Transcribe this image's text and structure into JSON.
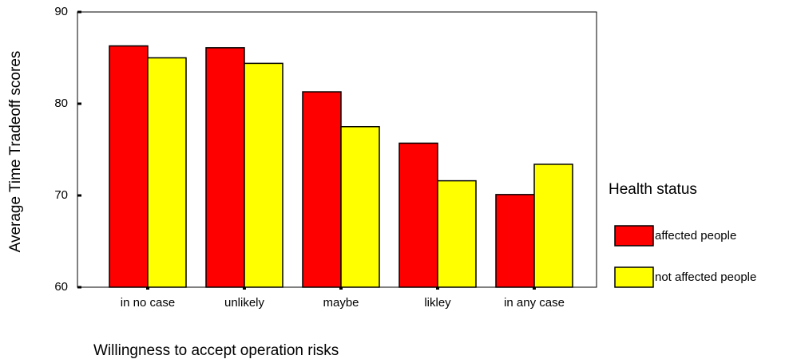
{
  "chart_data": {
    "type": "bar",
    "x_label": "Willingness to accept operation risks",
    "y_label": "Average Time Tradeoff scores",
    "legend_title": "Health status",
    "categories": [
      "in no case",
      "unlikely",
      "maybe",
      "likley",
      "in any case"
    ],
    "series": [
      {
        "name": "affected people",
        "color": "#ff0000",
        "values": [
          86.3,
          86.1,
          81.3,
          75.7,
          70.1
        ]
      },
      {
        "name": "not affected people",
        "color": "#ffff00",
        "values": [
          85.0,
          84.4,
          77.5,
          71.6,
          73.4
        ]
      }
    ],
    "ylim": [
      60,
      90
    ],
    "yticks": [
      60,
      70,
      80,
      90
    ]
  }
}
